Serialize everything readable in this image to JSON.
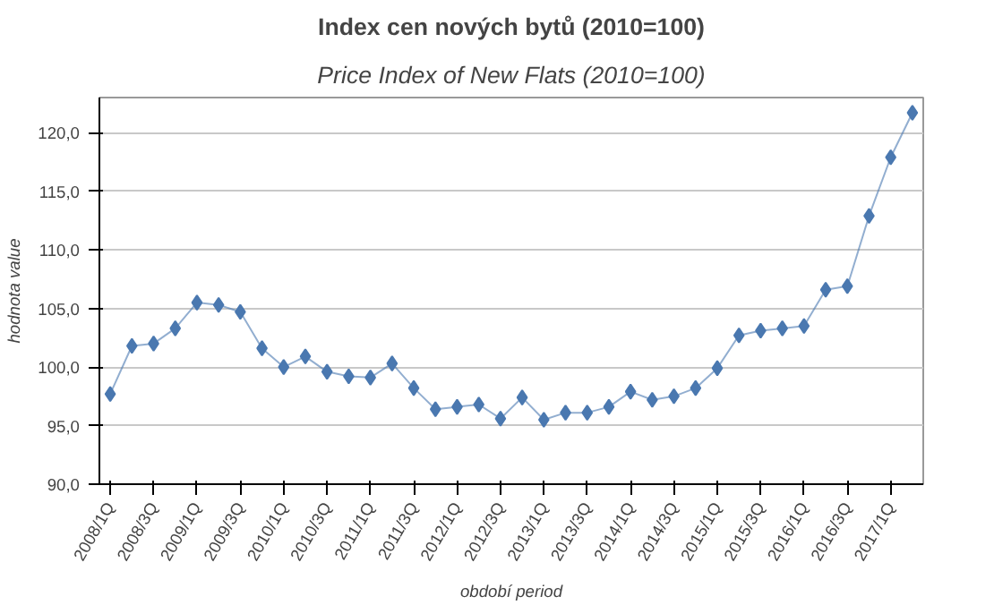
{
  "chart_data": {
    "type": "line",
    "title": "Index cen nových bytů (2010=100)",
    "subtitle": "Price Index of New Flats (2010=100)",
    "xlabel": "období period",
    "ylabel": "hodnota value",
    "categories": [
      "2008/1Q",
      null,
      "2008/3Q",
      null,
      "2009/1Q",
      null,
      "2009/3Q",
      null,
      "2010/1Q",
      null,
      "2010/3Q",
      null,
      "2011/1Q",
      null,
      "2011/3Q",
      null,
      "2012/1Q",
      null,
      "2012/3Q",
      null,
      "2013/1Q",
      null,
      "2013/3Q",
      null,
      "2014/1Q",
      null,
      "2014/3Q",
      null,
      "2015/1Q",
      null,
      "2015/3Q",
      null,
      "2016/1Q",
      null,
      "2016/3Q",
      null,
      "2017/1Q",
      null
    ],
    "series": [
      {
        "color": "#4a78b0",
        "values": [
          97.7,
          101.8,
          102.0,
          103.3,
          105.5,
          105.3,
          104.7,
          101.6,
          100.0,
          100.9,
          99.6,
          99.2,
          99.1,
          100.3,
          98.2,
          96.4,
          96.6,
          96.8,
          95.6,
          97.4,
          95.5,
          96.1,
          96.1,
          96.6,
          97.9,
          97.2,
          97.5,
          98.2,
          99.9,
          102.7,
          103.1,
          103.3,
          103.5,
          106.6,
          106.9,
          112.9,
          117.9,
          121.7
        ]
      }
    ],
    "ylim": [
      90,
      123
    ],
    "yticks": [
      {
        "value": 90,
        "label": "90,0"
      },
      {
        "value": 95,
        "label": "95,0"
      },
      {
        "value": 100,
        "label": "100,0"
      },
      {
        "value": 105,
        "label": "105,0"
      },
      {
        "value": 110,
        "label": "110,0"
      },
      {
        "value": 115,
        "label": "115,0"
      },
      {
        "value": 120,
        "label": "120,0"
      }
    ],
    "grid": "y",
    "marker": "diamond",
    "line_style": "solid"
  }
}
